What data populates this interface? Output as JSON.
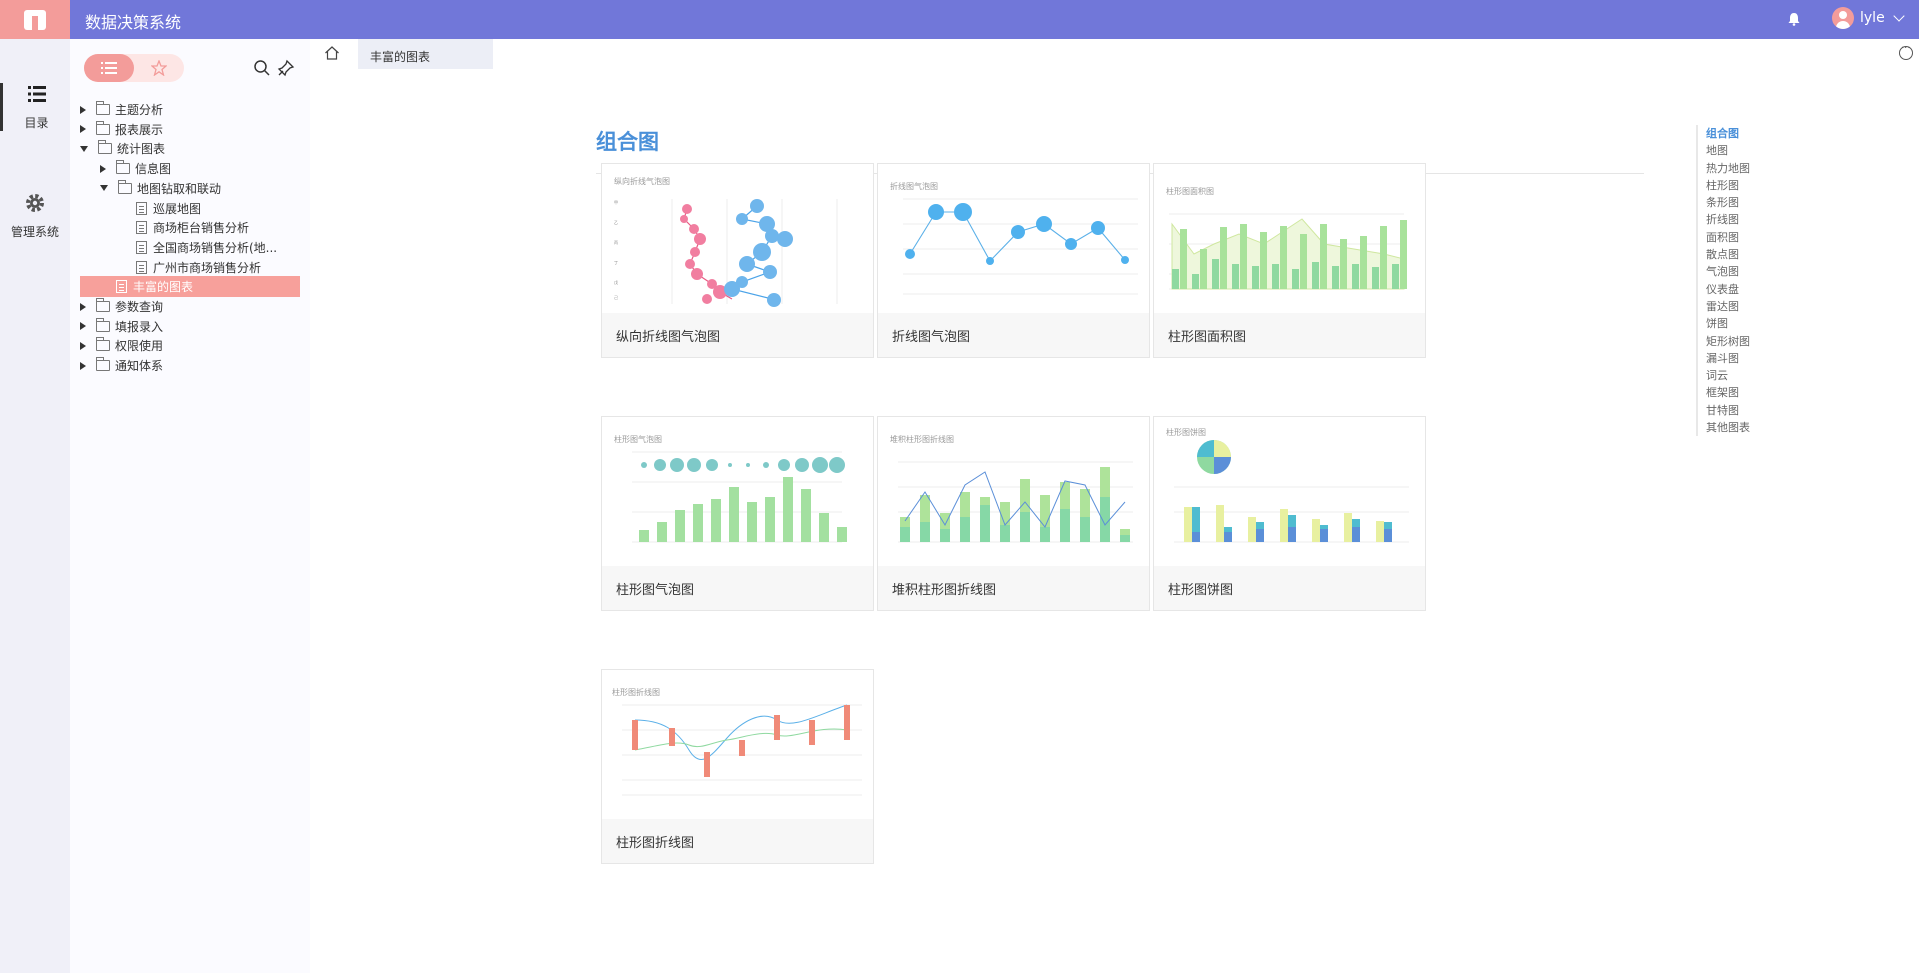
{
  "app": {
    "title": "数据决策系统",
    "user": "lyle"
  },
  "leftnav": [
    {
      "label": "目录",
      "icon": "list-icon"
    },
    {
      "label": "管理系统",
      "icon": "gear-icon"
    }
  ],
  "tree": [
    {
      "label": "主题分析",
      "level": 0,
      "type": "folder-special",
      "expand": "closed"
    },
    {
      "label": "报表展示",
      "level": 0,
      "type": "folder",
      "expand": "closed"
    },
    {
      "label": "统计图表",
      "level": 0,
      "type": "folder",
      "expand": "open"
    },
    {
      "label": "信息图",
      "level": 1,
      "type": "folder",
      "expand": "closed"
    },
    {
      "label": "地图钻取和联动",
      "level": 1,
      "type": "folder",
      "expand": "open"
    },
    {
      "label": "巡展地图",
      "level": 2,
      "type": "doc",
      "expand": "none"
    },
    {
      "label": "商场柜台销售分析",
      "level": 2,
      "type": "doc",
      "expand": "none"
    },
    {
      "label": "全国商场销售分析(地...",
      "level": 2,
      "type": "doc",
      "expand": "none"
    },
    {
      "label": "广州市商场销售分析",
      "level": 2,
      "type": "doc",
      "expand": "none"
    },
    {
      "label": "丰富的图表",
      "level": 1,
      "type": "doc",
      "expand": "none",
      "selected": true
    },
    {
      "label": "参数查询",
      "level": 0,
      "type": "folder",
      "expand": "closed"
    },
    {
      "label": "填报录入",
      "level": 0,
      "type": "folder",
      "expand": "closed"
    },
    {
      "label": "权限使用",
      "level": 0,
      "type": "folder",
      "expand": "closed"
    },
    {
      "label": "通知体系",
      "level": 0,
      "type": "folder",
      "expand": "closed"
    }
  ],
  "tabs": {
    "active": "丰富的图表"
  },
  "main": {
    "heading": "组合图"
  },
  "cards": [
    {
      "label": "纵向折线图气泡图",
      "thumb_title": "纵向折线气泡图"
    },
    {
      "label": "折线图气泡图",
      "thumb_title": "折线图气泡图"
    },
    {
      "label": "柱形图面积图",
      "thumb_title": "柱形图面积图"
    },
    {
      "label": "柱形图气泡图",
      "thumb_title": "柱形图气泡图"
    },
    {
      "label": "堆积柱形图折线图",
      "thumb_title": "堆积柱形图折线图"
    },
    {
      "label": "柱形图饼图",
      "thumb_title": "柱形图饼图"
    },
    {
      "label": "柱形图折线图",
      "thumb_title": "柱形图折线图"
    }
  ],
  "toc": [
    "组合图",
    "地图",
    "热力地图",
    "柱形图",
    "条形图",
    "折线图",
    "面积图",
    "散点图",
    "气泡图",
    "仪表盘",
    "雷达图",
    "饼图",
    "矩形树图",
    "漏斗图",
    "词云",
    "框架图",
    "甘特图",
    "其他图表"
  ],
  "colors": {
    "topbar": "#7177d9",
    "accent": "#f39c9a",
    "link": "#4a90d9"
  }
}
